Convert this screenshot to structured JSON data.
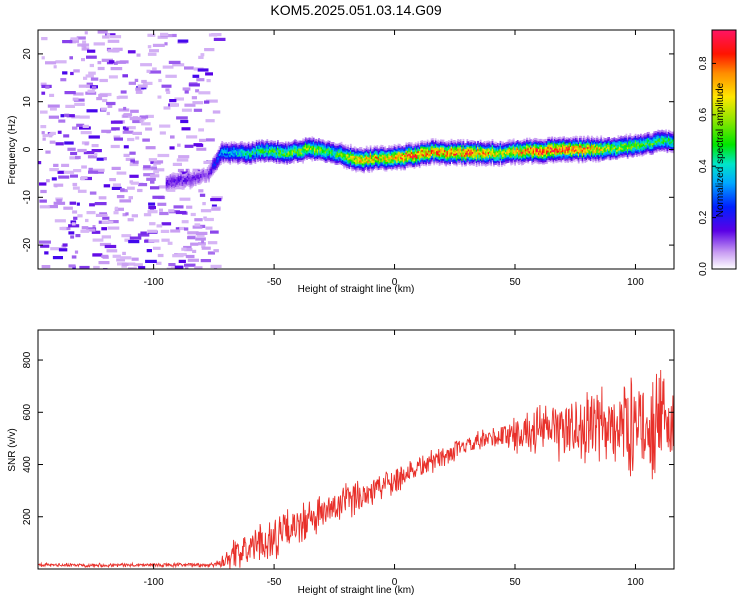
{
  "title": "KOM5.2025.051.03.14.G09",
  "chart_data": [
    {
      "type": "heatmap",
      "xlabel": "Height of straight line (km)",
      "ylabel": "Frequency (Hz)",
      "xlim": [
        -148,
        116
      ],
      "ylim": [
        -25,
        25
      ],
      "x_ticks": [
        "-100",
        "-50",
        "0",
        "50",
        "100"
      ],
      "y_ticks": [
        "-20",
        "-10",
        "0",
        "10",
        "20"
      ],
      "colorbar": {
        "label": "Normalized spectral amplitude",
        "range": [
          0,
          0.93
        ],
        "ticks": [
          "0.0",
          "0.2",
          "0.4",
          "0.6",
          "0.8"
        ]
      },
      "ridge": {
        "x": [
          -95,
          -85,
          -78,
          -72,
          -60,
          -55,
          -45,
          -35,
          -25,
          -15,
          -5,
          5,
          15,
          30,
          45,
          60,
          75,
          90,
          100,
          110,
          116
        ],
        "frequency": [
          -6.5,
          -6,
          -5,
          -0.5,
          -0.5,
          0,
          -0.5,
          0.5,
          -0.5,
          -2,
          -1.5,
          -1.2,
          -0.3,
          -0.5,
          -0.5,
          0,
          0.2,
          0.5,
          1,
          2,
          2
        ],
        "amplitude": [
          0.15,
          0.15,
          0.12,
          0.35,
          0.45,
          0.5,
          0.55,
          0.6,
          0.5,
          0.75,
          0.7,
          0.85,
          0.8,
          0.85,
          0.65,
          0.9,
          0.85,
          0.6,
          0.55,
          0.5,
          0.45
        ]
      },
      "noise_region_x": [
        -148,
        -75
      ]
    },
    {
      "type": "line",
      "xlabel": "Height of straight line (km)",
      "ylabel": "SNR (v/v)",
      "xlim": [
        -148,
        116
      ],
      "ylim": [
        0,
        915
      ],
      "x_ticks": [
        "-100",
        "-50",
        "0",
        "50",
        "100"
      ],
      "y_ticks": [
        "200",
        "400",
        "600",
        "800"
      ],
      "color": "#e8302a",
      "trend": {
        "x": [
          -148,
          -75,
          -70,
          -50,
          -30,
          -10,
          10,
          30,
          45,
          60,
          80,
          100,
          116
        ],
        "y": [
          15,
          15,
          40,
          120,
          210,
          300,
          390,
          470,
          510,
          530,
          540,
          550,
          555
        ]
      },
      "noise_amplitude": {
        "x": [
          -148,
          -75,
          -70,
          -50,
          0,
          30,
          50,
          80,
          100,
          116
        ],
        "y": [
          8,
          10,
          60,
          100,
          70,
          40,
          80,
          170,
          220,
          230
        ]
      }
    }
  ]
}
